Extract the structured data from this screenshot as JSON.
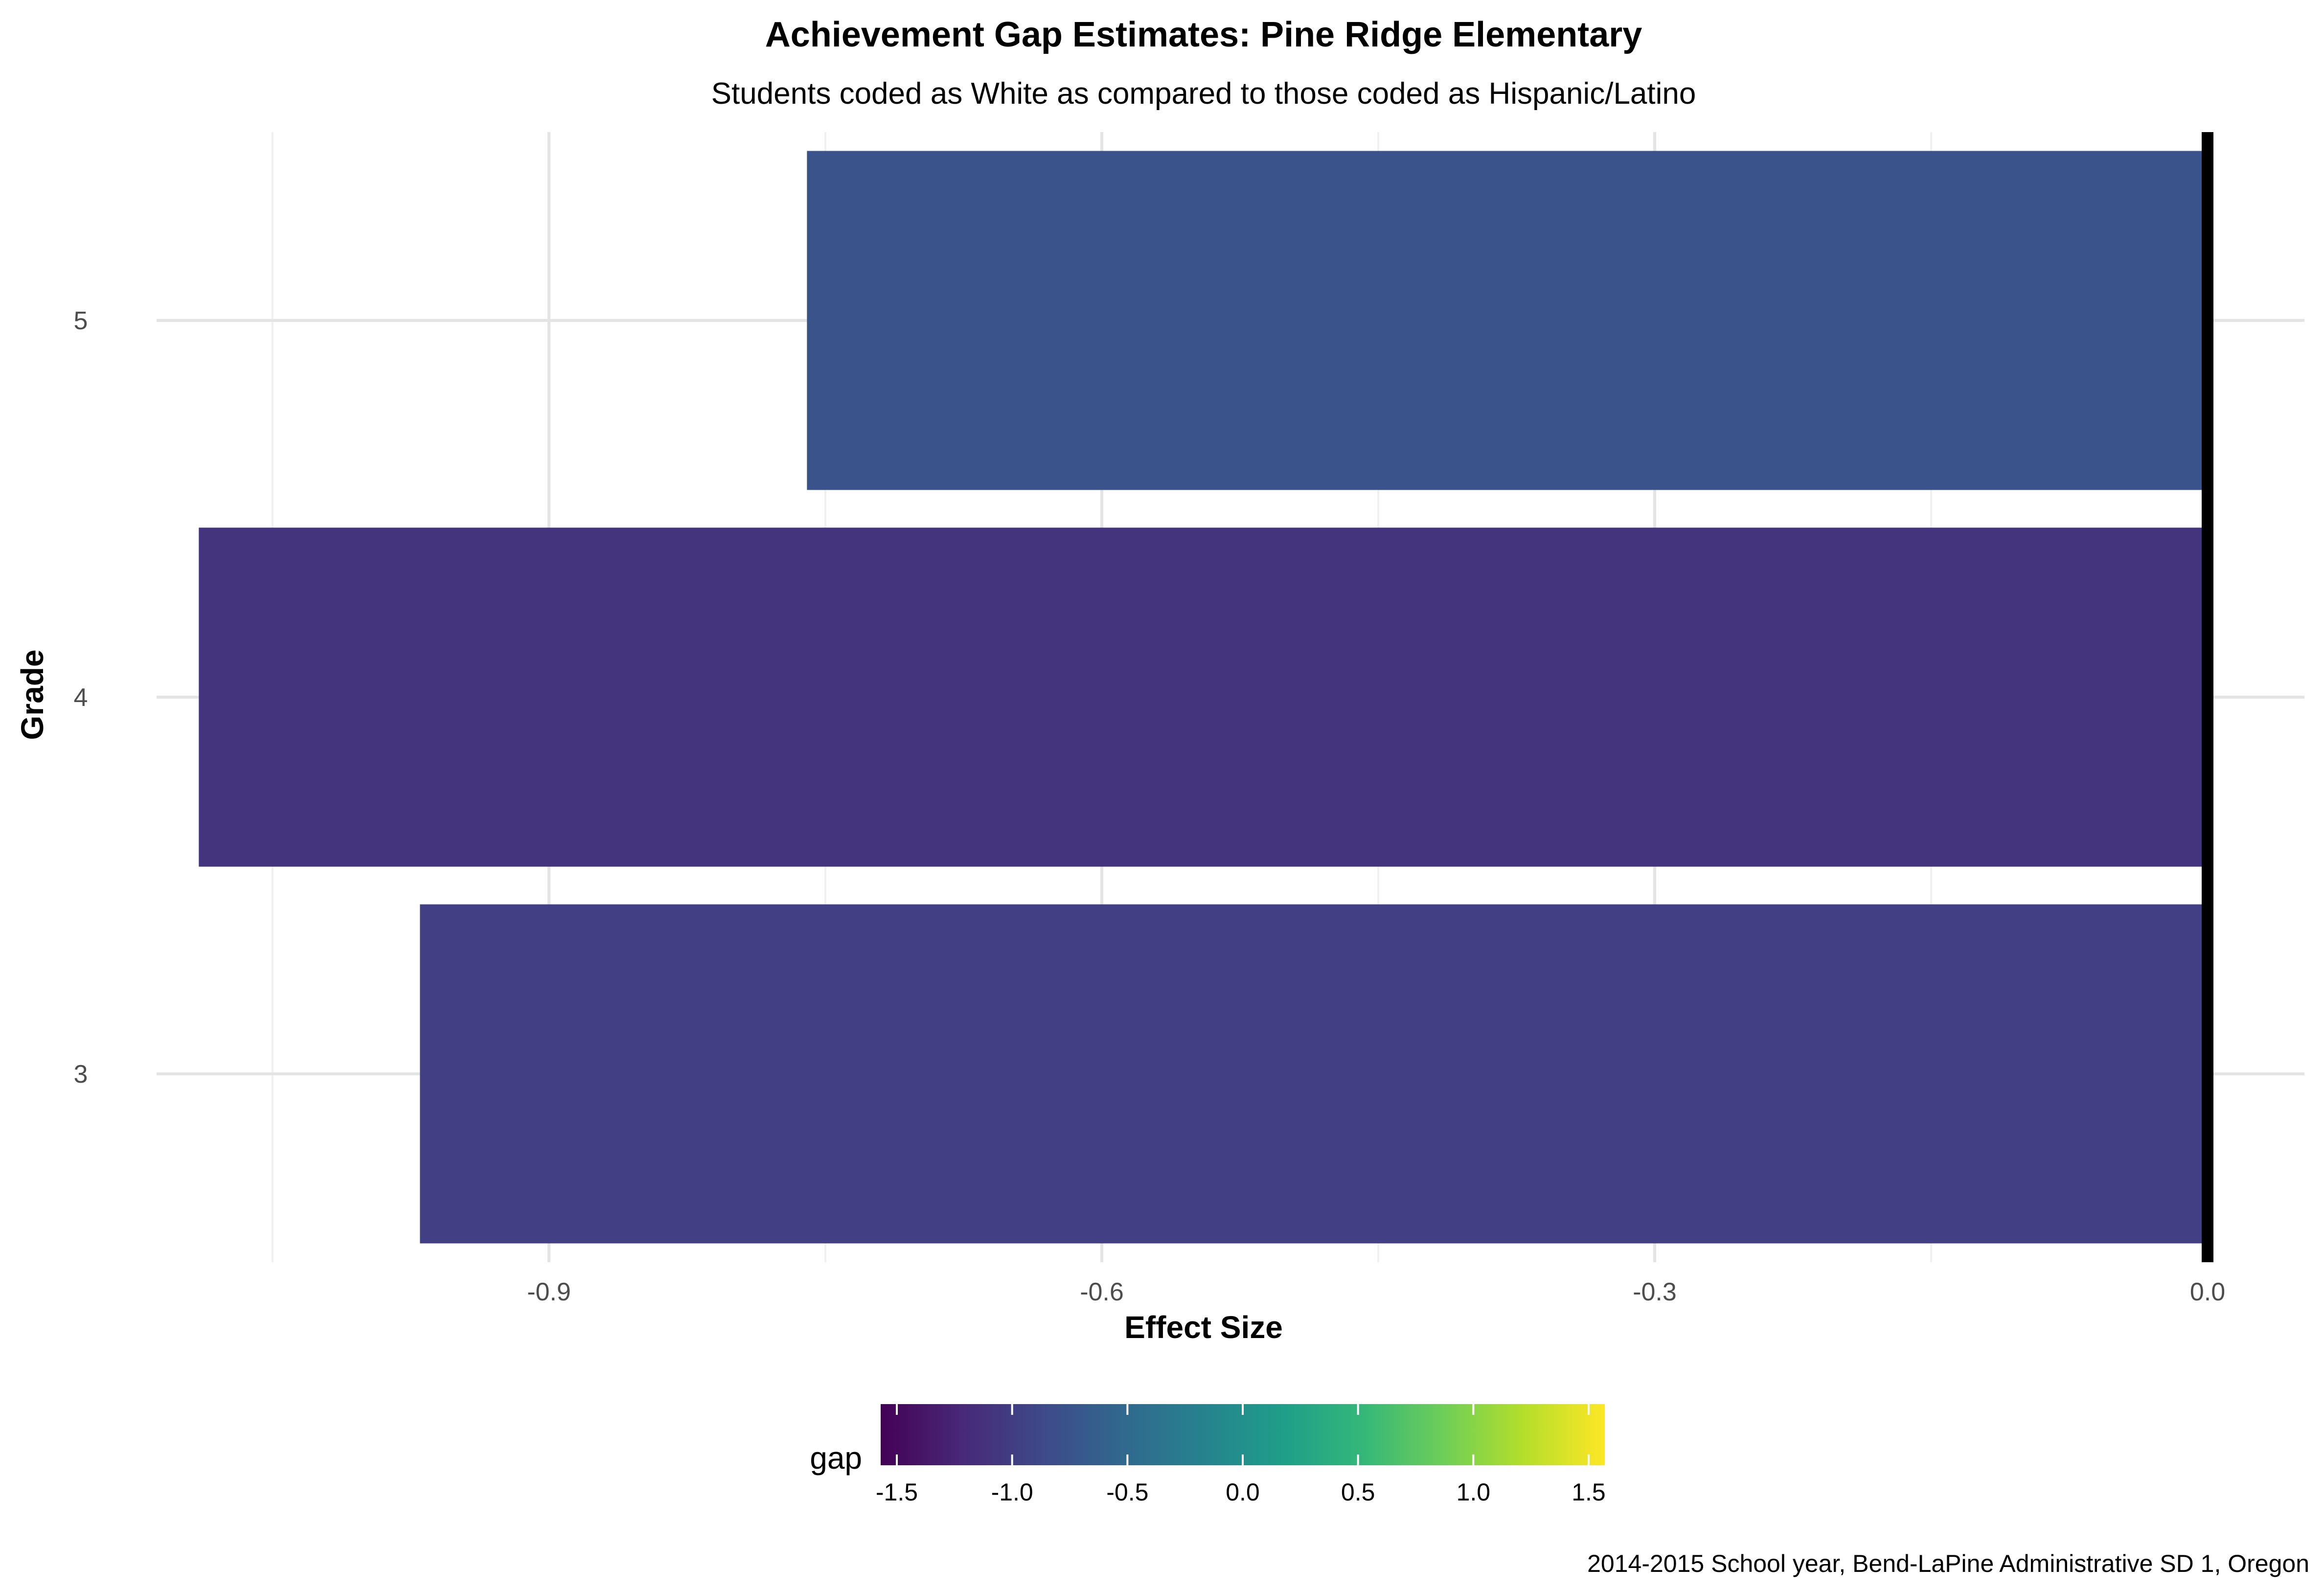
{
  "chart_data": {
    "type": "bar",
    "orientation": "horizontal",
    "title": "Achievement Gap Estimates: Pine Ridge Elementary",
    "subtitle": "Students coded as White as compared to those coded as Hispanic/Latino",
    "xlabel": "Effect Size",
    "ylabel": "Grade",
    "categories": [
      "3",
      "4",
      "5"
    ],
    "values": [
      -0.97,
      -1.09,
      -0.76
    ],
    "xlim": [
      -1.095,
      0.0
    ],
    "x_ticks": [
      -0.9,
      -0.6,
      -0.3,
      0.0
    ],
    "x_tick_labels": [
      "-0.9",
      "-0.6",
      "-0.3",
      "0.0"
    ],
    "grid": true,
    "reference_line_x": 0.0,
    "legend": {
      "title": "gap",
      "position": "bottom",
      "type": "colorbar",
      "range": [
        -1.57,
        1.57
      ],
      "ticks": [
        -1.5,
        -1.0,
        -0.5,
        0.0,
        0.5,
        1.0,
        1.5
      ],
      "tick_labels": [
        "-1.5",
        "-1.0",
        "-0.5",
        "0.0",
        "0.5",
        "1.0",
        "1.5"
      ],
      "palette": [
        "#440154",
        "#482878",
        "#3e4989",
        "#31688e",
        "#26828e",
        "#1f9e89",
        "#35b779",
        "#6ece58",
        "#b5de2b",
        "#fde725"
      ]
    },
    "caption": "2014-2015 School year, Bend-LaPine Administrative SD 1, Oregon"
  }
}
